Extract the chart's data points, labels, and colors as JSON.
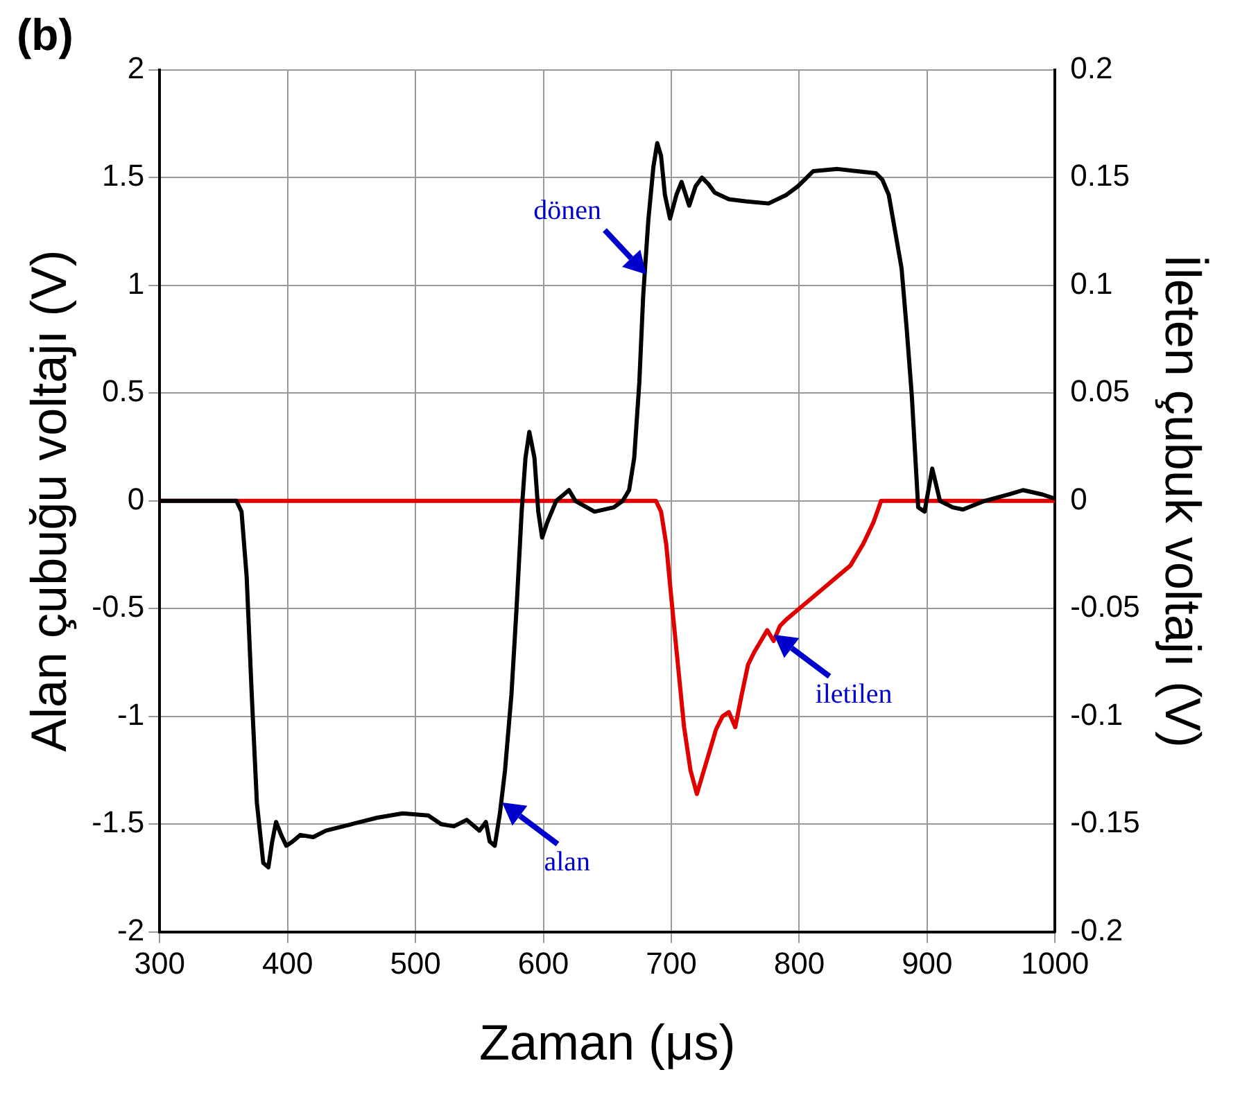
{
  "chart_data": {
    "type": "line",
    "title": "(b)",
    "xlabel": "Zaman (μs)",
    "ylabel": "Alan çubuğu voltajı (V)",
    "y2label": "İleten çubuk voltajı (V)",
    "xlim": [
      300,
      1000
    ],
    "xticks": [
      300,
      400,
      500,
      600,
      700,
      800,
      900,
      1000
    ],
    "ylim": [
      -2,
      2
    ],
    "yticks": [
      -2,
      -1.5,
      -1,
      -0.5,
      0,
      0.5,
      1,
      1.5,
      2
    ],
    "y2lim": [
      -0.2,
      0.2
    ],
    "y2ticks": [
      -0.2,
      -0.15,
      -0.1,
      -0.05,
      0,
      0.05,
      0.1,
      0.15,
      0.2
    ],
    "grid": true,
    "legend": false,
    "marker": "none",
    "line_style": "solid",
    "series": [
      {
        "color": "#000000",
        "x": [
          300,
          360,
          364,
          368,
          372,
          376,
          381,
          385,
          388,
          391,
          395,
          399,
          404,
          410,
          420,
          430,
          450,
          470,
          490,
          510,
          520,
          530,
          540,
          550,
          555,
          558,
          562,
          566,
          570,
          575,
          579,
          583,
          586,
          589,
          593,
          596,
          599,
          603,
          610,
          620,
          625,
          640,
          655,
          662,
          667,
          671,
          675,
          678,
          682,
          686,
          689,
          692,
          695,
          699,
          704,
          708,
          714,
          719,
          724,
          729,
          734,
          745,
          758,
          776,
          790,
          799,
          811,
          830,
          845,
          860,
          865,
          870,
          875,
          880,
          884,
          888,
          893,
          898,
          904,
          910,
          920,
          928,
          945,
          964,
          975,
          990,
          1000
        ],
        "values": [
          0,
          0,
          -0.05,
          -0.35,
          -0.9,
          -1.4,
          -1.68,
          -1.7,
          -1.58,
          -1.49,
          -1.55,
          -1.6,
          -1.58,
          -1.55,
          -1.56,
          -1.53,
          -1.5,
          -1.47,
          -1.45,
          -1.46,
          -1.5,
          -1.51,
          -1.48,
          -1.53,
          -1.49,
          -1.58,
          -1.6,
          -1.45,
          -1.25,
          -0.9,
          -0.5,
          -0.05,
          0.2,
          0.32,
          0.2,
          -0.05,
          -0.17,
          -0.1,
          0,
          0.05,
          0,
          -0.05,
          -0.03,
          0,
          0.05,
          0.2,
          0.55,
          0.95,
          1.3,
          1.55,
          1.66,
          1.6,
          1.42,
          1.31,
          1.42,
          1.48,
          1.37,
          1.46,
          1.5,
          1.47,
          1.43,
          1.4,
          1.39,
          1.38,
          1.42,
          1.46,
          1.53,
          1.54,
          1.53,
          1.52,
          1.49,
          1.42,
          1.25,
          1.08,
          0.8,
          0.49,
          -0.03,
          -0.05,
          0.15,
          0,
          -0.03,
          -0.04,
          0,
          0.03,
          0.05,
          0.03,
          0.01
        ]
      },
      {
        "color": "#e00000",
        "axis": "y2",
        "x": [
          300,
          680,
          688,
          692,
          696,
          700,
          705,
          710,
          715,
          720,
          725,
          730,
          735,
          740,
          745,
          750,
          755,
          760,
          765,
          770,
          775,
          780,
          785,
          790,
          800,
          810,
          820,
          830,
          840,
          850,
          858,
          864,
          880,
          1000
        ],
        "values": [
          0,
          0,
          0,
          -0.005,
          -0.02,
          -0.045,
          -0.075,
          -0.105,
          -0.125,
          -0.136,
          -0.126,
          -0.116,
          -0.106,
          -0.1,
          -0.098,
          -0.105,
          -0.09,
          -0.076,
          -0.07,
          -0.065,
          -0.06,
          -0.065,
          -0.058,
          -0.055,
          -0.05,
          -0.045,
          -0.04,
          -0.035,
          -0.03,
          -0.02,
          -0.01,
          0,
          0,
          0
        ]
      }
    ],
    "annotations": [
      {
        "text": "dönen",
        "x": 680,
        "y": 1.05
      },
      {
        "text": "alan",
        "x": 568,
        "y": -1.4
      },
      {
        "text": "iletilen",
        "x": 780,
        "y": -0.62
      }
    ]
  }
}
